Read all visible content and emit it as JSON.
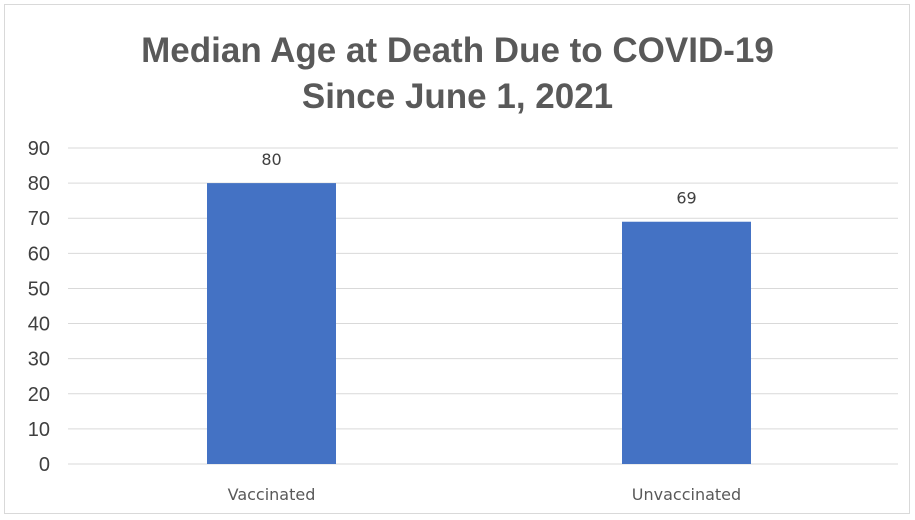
{
  "chart_data": {
    "type": "bar",
    "title_lines": [
      "Median Age at Death Due to COVID-19",
      "Since June 1, 2021"
    ],
    "categories": [
      "Vaccinated",
      "Unvaccinated"
    ],
    "values": [
      80,
      69
    ],
    "data_labels": [
      "80",
      "69"
    ],
    "ylim": [
      0,
      90
    ],
    "yticks": [
      0,
      10,
      20,
      30,
      40,
      50,
      60,
      70,
      80,
      90
    ],
    "grid": true,
    "legend": "none",
    "xlabel": "",
    "ylabel": "",
    "colors": {
      "bar": "#4472c4",
      "grid": "#d9d9d9",
      "title": "#595959"
    }
  }
}
